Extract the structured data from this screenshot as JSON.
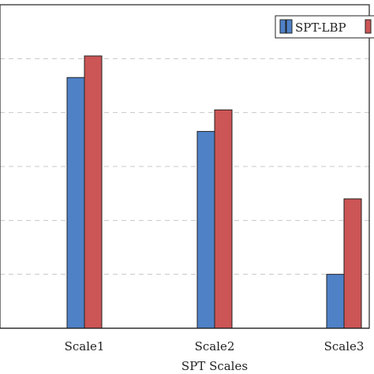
{
  "chart_data": {
    "type": "bar",
    "xlabel": "SPT Scales",
    "categories": [
      "Scale1",
      "Scale2",
      "Scale3"
    ],
    "series": [
      {
        "name": "SPT-LBP",
        "values": [
          4.65,
          3.65,
          1.0
        ],
        "color": "#4f81c7"
      },
      {
        "values": [
          5.05,
          4.05,
          2.4
        ],
        "color": "#cc5555"
      }
    ],
    "ylim": [
      0,
      6
    ],
    "grid": true,
    "grid_style": "dashed-horizontal",
    "legend_position": "top-right"
  }
}
